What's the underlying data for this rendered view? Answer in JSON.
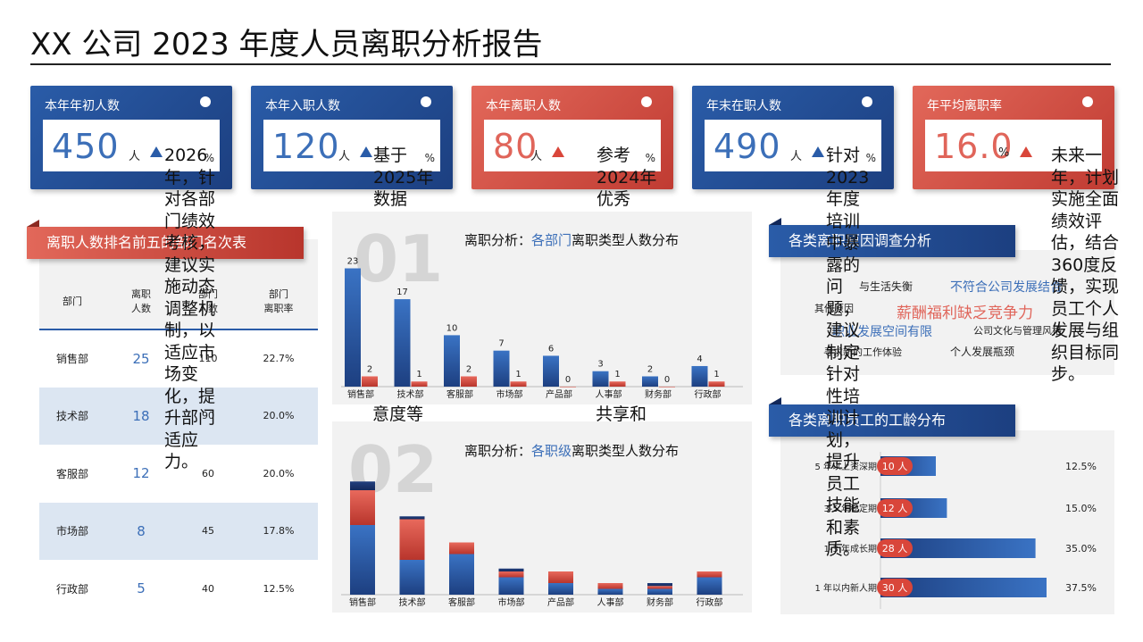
{
  "title": "XX 公司 2023 年度人员离职分析报告",
  "kpis": [
    {
      "label": "本年年初人数",
      "value": "450",
      "unit": "人",
      "pct": "%",
      "note": "2026年，针对各部门绩效考核，建议实施动态调整机制，以适应市场变化，提升部门适应力。"
    },
    {
      "label": "本年入职人数",
      "value": "120",
      "unit": "人",
      "pct": "%",
      "note": "基于2025年数据"
    },
    {
      "label": "本年离职人数",
      "value": "80",
      "unit": "人",
      "pct": "%",
      "note": "参考2024年优秀"
    },
    {
      "label": "年末在职人数",
      "value": "490",
      "unit": "人",
      "pct": "%",
      "note": "针对2023年度培训中暴露的问题，建议制定针对性培训计划，提升员工技能和素质。"
    },
    {
      "label": "年平均离职率",
      "value": "16.0",
      "unit": "%",
      "pct": "",
      "note": "未来一年，计划实施全面绩效评估，结合360度反馈，实现员工个人发展与组织目标同步。"
    }
  ],
  "floating_notes": [
    "意度等",
    "共享和"
  ],
  "ranking": {
    "ribbon": "离职人数排名前五的部门名次表",
    "headers": [
      "部门",
      "离职\n人数",
      "部门\n人数",
      "部门\n离职率"
    ],
    "rows": [
      [
        "销售部",
        "25",
        "110",
        "22.7%"
      ],
      [
        "技术部",
        "18",
        "90",
        "20.0%"
      ],
      [
        "客服部",
        "12",
        "60",
        "20.0%"
      ],
      [
        "市场部",
        "8",
        "45",
        "17.8%"
      ],
      [
        "行政部",
        "5",
        "40",
        "12.5%"
      ]
    ]
  },
  "chart1": {
    "title_prefix": "离职分析：",
    "title_highlight": "各部门",
    "title_suffix": "离职类型人数分布",
    "watermark": "01"
  },
  "chart2": {
    "title_prefix": "离职分析：",
    "title_highlight": "各职级",
    "title_suffix": "离职类型人数分布",
    "watermark": "02"
  },
  "reasons": {
    "ribbon": "各类离职原因调查分析",
    "words": [
      {
        "text": "与生活失衡",
        "size": 12,
        "color": "#222222"
      },
      {
        "text": "不符合公司发展结合",
        "size": 14,
        "color": "#3c6fb8"
      },
      {
        "text": "其他原因",
        "size": 11,
        "color": "#222222"
      },
      {
        "text": "薪酬福利缺乏竞争力",
        "size": 17,
        "color": "#e0655a"
      },
      {
        "text": "职业发展空间有限",
        "size": 14,
        "color": "#3c6fb8"
      },
      {
        "text": "公司文化与管理风格",
        "size": 11,
        "color": "#222222"
      },
      {
        "text": "寻求新的工作体验",
        "size": 11,
        "color": "#222222"
      },
      {
        "text": "个人发展瓶颈",
        "size": 12,
        "color": "#222222"
      }
    ]
  },
  "tenure": {
    "ribbon": "各类离职员工的工龄分布"
  },
  "chart_data": [
    {
      "type": "bar",
      "title": "离职分析：各部门离职类型人数分布",
      "categories": [
        "销售部",
        "技术部",
        "客服部",
        "市场部",
        "产品部",
        "人事部",
        "财务部",
        "行政部"
      ],
      "series": [
        {
          "values": [
            23,
            17,
            10,
            7,
            6,
            3,
            2,
            4
          ],
          "color": "#2e64b4"
        },
        {
          "values": [
            2,
            1,
            2,
            1,
            0,
            1,
            0,
            1
          ],
          "color": "#d9463a"
        }
      ],
      "ylim": [
        0,
        25
      ]
    },
    {
      "type": "bar",
      "stacked": true,
      "title": "离职分析：各职级离职类型人数分布",
      "categories": [
        "销售部",
        "技术部",
        "客服部",
        "市场部",
        "产品部",
        "人事部",
        "财务部",
        "行政部"
      ],
      "series": [
        {
          "values": [
            12,
            6,
            7,
            3,
            2,
            1,
            1,
            3
          ],
          "color": "#2e64b4"
        },
        {
          "values": [
            6,
            7,
            2,
            1,
            2,
            1,
            0.5,
            1
          ],
          "color": "#d9463a"
        },
        {
          "values": [
            1.5,
            0.5,
            0,
            0.5,
            0,
            0,
            0.5,
            0
          ],
          "color": "#1c3370"
        }
      ],
      "ylim": [
        0,
        20
      ]
    },
    {
      "type": "bar",
      "orientation": "horizontal",
      "title": "各类离职员工的工龄分布",
      "categories": [
        "5 年以上资深期",
        "3-5 年稳定期",
        "1-3 年成长期",
        "1 年以内新人期"
      ],
      "values": [
        10,
        12,
        28,
        30
      ],
      "value_labels": [
        "10 人",
        "12 人",
        "28 人",
        "30 人"
      ],
      "percent_labels": [
        "12.5%",
        "15.0%",
        "35.0%",
        "37.5%"
      ],
      "xlim": [
        0,
        30
      ]
    }
  ]
}
